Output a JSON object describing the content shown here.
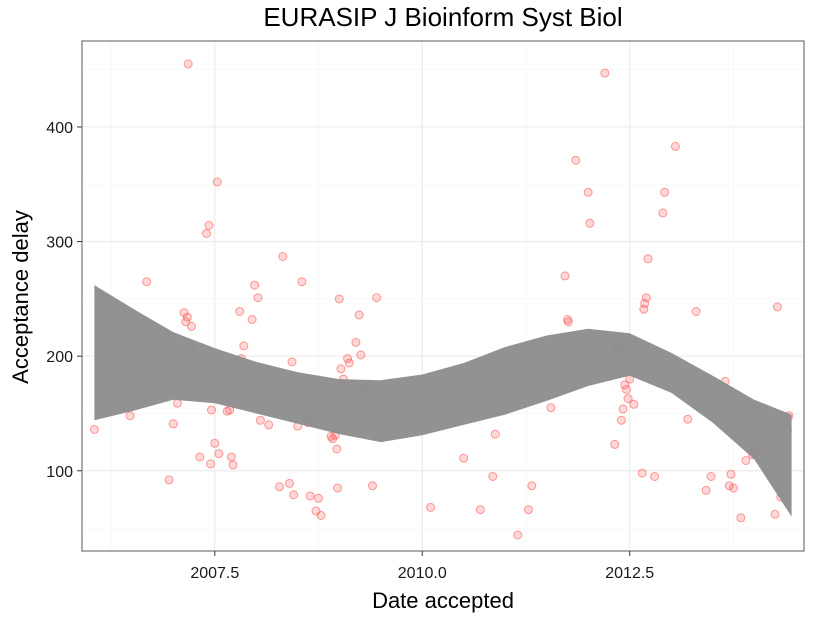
{
  "chart_data": {
    "type": "scatter",
    "title": "EURASIP J Bioinform Syst Biol",
    "xlabel": "Date accepted",
    "ylabel": "Acceptance delay",
    "x_axis_kind": "date",
    "x_range": [
      2005.9,
      2014.6
    ],
    "ylim": [
      30,
      475
    ],
    "x_major_ticks": [
      2007.5,
      2010.0,
      2012.5
    ],
    "x_tick_labels": [
      "2007.5",
      "2010.0",
      "2012.5"
    ],
    "x_minor_ticks": [
      2006.25,
      2008.75,
      2011.25,
      2013.75
    ],
    "y_major_ticks": [
      100,
      200,
      300,
      400
    ],
    "y_tick_labels": [
      "100",
      "200",
      "300",
      "400"
    ],
    "y_minor_ticks": [
      50,
      150,
      250,
      350,
      450
    ],
    "grid": true,
    "colors": {
      "points": "#ff4d4d",
      "smooth_band": "#8c8c8c",
      "grid_major": "#ececec",
      "grid_minor": "#f6f6f6",
      "panel_border": "#7f7f7f"
    },
    "points": [
      [
        2006.05,
        136
      ],
      [
        2006.35,
        158
      ],
      [
        2006.42,
        196
      ],
      [
        2006.48,
        148
      ],
      [
        2006.5,
        160
      ],
      [
        2006.68,
        265
      ],
      [
        2006.78,
        172
      ],
      [
        2006.95,
        92
      ],
      [
        2007.0,
        141
      ],
      [
        2007.05,
        159
      ],
      [
        2007.13,
        238
      ],
      [
        2007.15,
        230
      ],
      [
        2007.17,
        234
      ],
      [
        2007.18,
        455
      ],
      [
        2007.2,
        209
      ],
      [
        2007.22,
        226
      ],
      [
        2007.25,
        202
      ],
      [
        2007.28,
        179
      ],
      [
        2007.32,
        112
      ],
      [
        2007.4,
        307
      ],
      [
        2007.43,
        314
      ],
      [
        2007.45,
        106
      ],
      [
        2007.46,
        153
      ],
      [
        2007.5,
        124
      ],
      [
        2007.53,
        352
      ],
      [
        2007.55,
        115
      ],
      [
        2007.65,
        152
      ],
      [
        2007.68,
        153
      ],
      [
        2007.7,
        112
      ],
      [
        2007.72,
        105
      ],
      [
        2007.8,
        239
      ],
      [
        2007.82,
        198
      ],
      [
        2007.85,
        209
      ],
      [
        2007.88,
        190
      ],
      [
        2007.95,
        232
      ],
      [
        2007.98,
        262
      ],
      [
        2008.02,
        251
      ],
      [
        2008.05,
        144
      ],
      [
        2008.15,
        140
      ],
      [
        2008.28,
        86
      ],
      [
        2008.32,
        287
      ],
      [
        2008.4,
        89
      ],
      [
        2008.43,
        195
      ],
      [
        2008.45,
        79
      ],
      [
        2008.5,
        139
      ],
      [
        2008.55,
        265
      ],
      [
        2008.57,
        173
      ],
      [
        2008.6,
        144
      ],
      [
        2008.62,
        142
      ],
      [
        2008.65,
        78
      ],
      [
        2008.72,
        65
      ],
      [
        2008.75,
        76
      ],
      [
        2008.78,
        61
      ],
      [
        2008.9,
        130
      ],
      [
        2008.92,
        128
      ],
      [
        2008.95,
        131
      ],
      [
        2008.97,
        119
      ],
      [
        2008.98,
        85
      ],
      [
        2009.0,
        250
      ],
      [
        2009.02,
        189
      ],
      [
        2009.05,
        180
      ],
      [
        2009.1,
        198
      ],
      [
        2009.12,
        194
      ],
      [
        2009.2,
        212
      ],
      [
        2009.22,
        144
      ],
      [
        2009.24,
        236
      ],
      [
        2009.26,
        201
      ],
      [
        2009.3,
        174
      ],
      [
        2009.32,
        170
      ],
      [
        2009.4,
        87
      ],
      [
        2009.45,
        251
      ],
      [
        2009.6,
        150
      ],
      [
        2009.8,
        165
      ],
      [
        2010.05,
        163
      ],
      [
        2010.1,
        68
      ],
      [
        2010.5,
        111
      ],
      [
        2010.55,
        166
      ],
      [
        2010.7,
        66
      ],
      [
        2010.85,
        95
      ],
      [
        2010.88,
        132
      ],
      [
        2011.05,
        168
      ],
      [
        2011.15,
        44
      ],
      [
        2011.28,
        66
      ],
      [
        2011.32,
        87
      ],
      [
        2011.55,
        155
      ],
      [
        2011.72,
        270
      ],
      [
        2011.75,
        232
      ],
      [
        2011.76,
        230
      ],
      [
        2011.85,
        371
      ],
      [
        2012.0,
        343
      ],
      [
        2012.02,
        316
      ],
      [
        2012.2,
        447
      ],
      [
        2012.32,
        123
      ],
      [
        2012.34,
        207
      ],
      [
        2012.38,
        209
      ],
      [
        2012.4,
        144
      ],
      [
        2012.42,
        154
      ],
      [
        2012.44,
        175
      ],
      [
        2012.46,
        171
      ],
      [
        2012.48,
        163
      ],
      [
        2012.5,
        180
      ],
      [
        2012.52,
        192
      ],
      [
        2012.55,
        158
      ],
      [
        2012.65,
        98
      ],
      [
        2012.67,
        241
      ],
      [
        2012.68,
        246
      ],
      [
        2012.7,
        251
      ],
      [
        2012.72,
        285
      ],
      [
        2012.8,
        95
      ],
      [
        2012.85,
        196
      ],
      [
        2012.9,
        325
      ],
      [
        2012.92,
        343
      ],
      [
        2013.05,
        383
      ],
      [
        2013.2,
        145
      ],
      [
        2013.3,
        239
      ],
      [
        2013.42,
        83
      ],
      [
        2013.48,
        95
      ],
      [
        2013.65,
        178
      ],
      [
        2013.7,
        87
      ],
      [
        2013.72,
        97
      ],
      [
        2013.75,
        85
      ],
      [
        2013.82,
        129
      ],
      [
        2013.84,
        59
      ],
      [
        2013.9,
        109
      ],
      [
        2013.95,
        157
      ],
      [
        2013.98,
        114
      ],
      [
        2014.0,
        117
      ],
      [
        2014.02,
        116
      ],
      [
        2014.25,
        62
      ],
      [
        2014.28,
        243
      ],
      [
        2014.32,
        77
      ],
      [
        2014.35,
        108
      ],
      [
        2014.4,
        136
      ],
      [
        2014.42,
        148
      ]
    ],
    "smooth_band": {
      "x": [
        2006.05,
        2006.5,
        2007.0,
        2007.5,
        2008.0,
        2008.5,
        2009.0,
        2009.5,
        2010.0,
        2010.5,
        2011.0,
        2011.5,
        2012.0,
        2012.5,
        2013.0,
        2013.5,
        2014.0,
        2014.45
      ],
      "upper": [
        262,
        242,
        221,
        207,
        195,
        186,
        180,
        179,
        184,
        194,
        208,
        218,
        224,
        220,
        203,
        183,
        162,
        149
      ],
      "lower": [
        144,
        152,
        162,
        159,
        150,
        141,
        132,
        125,
        131,
        140,
        149,
        161,
        174,
        183,
        168,
        142,
        110,
        60
      ]
    }
  }
}
